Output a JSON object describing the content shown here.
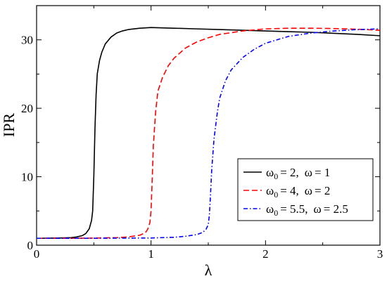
{
  "chart_data": {
    "type": "line",
    "xlabel": "λ",
    "ylabel": "IPR",
    "xlim": [
      0,
      3
    ],
    "ylim": [
      0,
      35
    ],
    "xticks": [
      0,
      1,
      2,
      3
    ],
    "yticks": [
      0,
      10,
      20,
      30
    ],
    "grid": false,
    "legend_position": "bottom-right",
    "series": [
      {
        "legend": {
          "omega_symbol": "ω",
          "omega0_sub": "0",
          "omega0_value": "= 2,",
          "omega_value": "= 1"
        },
        "color": "#000000",
        "dash": "solid",
        "x": [
          0,
          0.1,
          0.2,
          0.3,
          0.35,
          0.4,
          0.43,
          0.46,
          0.48,
          0.49,
          0.5,
          0.51,
          0.52,
          0.53,
          0.55,
          0.57,
          0.6,
          0.65,
          0.7,
          0.75,
          0.8,
          0.9,
          1.0,
          1.1,
          1.2,
          1.4,
          1.6,
          1.8,
          2.0,
          2.2,
          2.4,
          2.6,
          2.8,
          3.0
        ],
        "y": [
          1.0,
          1.02,
          1.05,
          1.1,
          1.2,
          1.4,
          1.7,
          2.4,
          3.6,
          5.0,
          10.0,
          17.0,
          22.0,
          25.0,
          27.0,
          28.2,
          29.4,
          30.4,
          31.0,
          31.3,
          31.5,
          31.7,
          31.8,
          31.75,
          31.7,
          31.6,
          31.5,
          31.4,
          31.3,
          31.2,
          31.1,
          30.95,
          30.8,
          30.6
        ]
      },
      {
        "legend": {
          "omega_symbol": "ω",
          "omega0_sub": "0",
          "omega0_value": "= 4,",
          "omega_value": "= 2"
        },
        "color": "#ff0000",
        "dash": "8,4",
        "x": [
          0,
          0.3,
          0.5,
          0.7,
          0.8,
          0.9,
          0.95,
          0.97,
          0.99,
          1.0,
          1.01,
          1.02,
          1.04,
          1.06,
          1.1,
          1.15,
          1.2,
          1.3,
          1.4,
          1.5,
          1.6,
          1.8,
          2.0,
          2.2,
          2.4,
          2.6,
          2.8,
          3.0
        ],
        "y": [
          1.0,
          1.01,
          1.03,
          1.1,
          1.2,
          1.45,
          1.8,
          2.3,
          3.3,
          5.0,
          9.5,
          14.5,
          19.5,
          22.5,
          24.5,
          26.2,
          27.3,
          28.8,
          29.7,
          30.3,
          30.8,
          31.3,
          31.6,
          31.7,
          31.7,
          31.65,
          31.55,
          31.4
        ]
      },
      {
        "legend": {
          "omega_symbol": "ω",
          "omega0_sub": "0",
          "omega0_value": "= 5.5,",
          "omega_value": "= 2.5"
        },
        "color": "#0000ff",
        "dash": "6,3,1.5,3",
        "x": [
          0,
          0.5,
          1.0,
          1.2,
          1.3,
          1.4,
          1.45,
          1.48,
          1.5,
          1.51,
          1.52,
          1.53,
          1.55,
          1.58,
          1.6,
          1.65,
          1.7,
          1.8,
          1.9,
          2.0,
          2.2,
          2.4,
          2.6,
          2.8,
          3.0
        ],
        "y": [
          1.0,
          1.01,
          1.05,
          1.15,
          1.3,
          1.55,
          1.85,
          2.3,
          3.0,
          4.5,
          7.5,
          11.0,
          15.5,
          19.5,
          21.5,
          24.0,
          25.6,
          27.4,
          28.6,
          29.5,
          30.5,
          31.0,
          31.3,
          31.5,
          31.6
        ]
      }
    ]
  }
}
